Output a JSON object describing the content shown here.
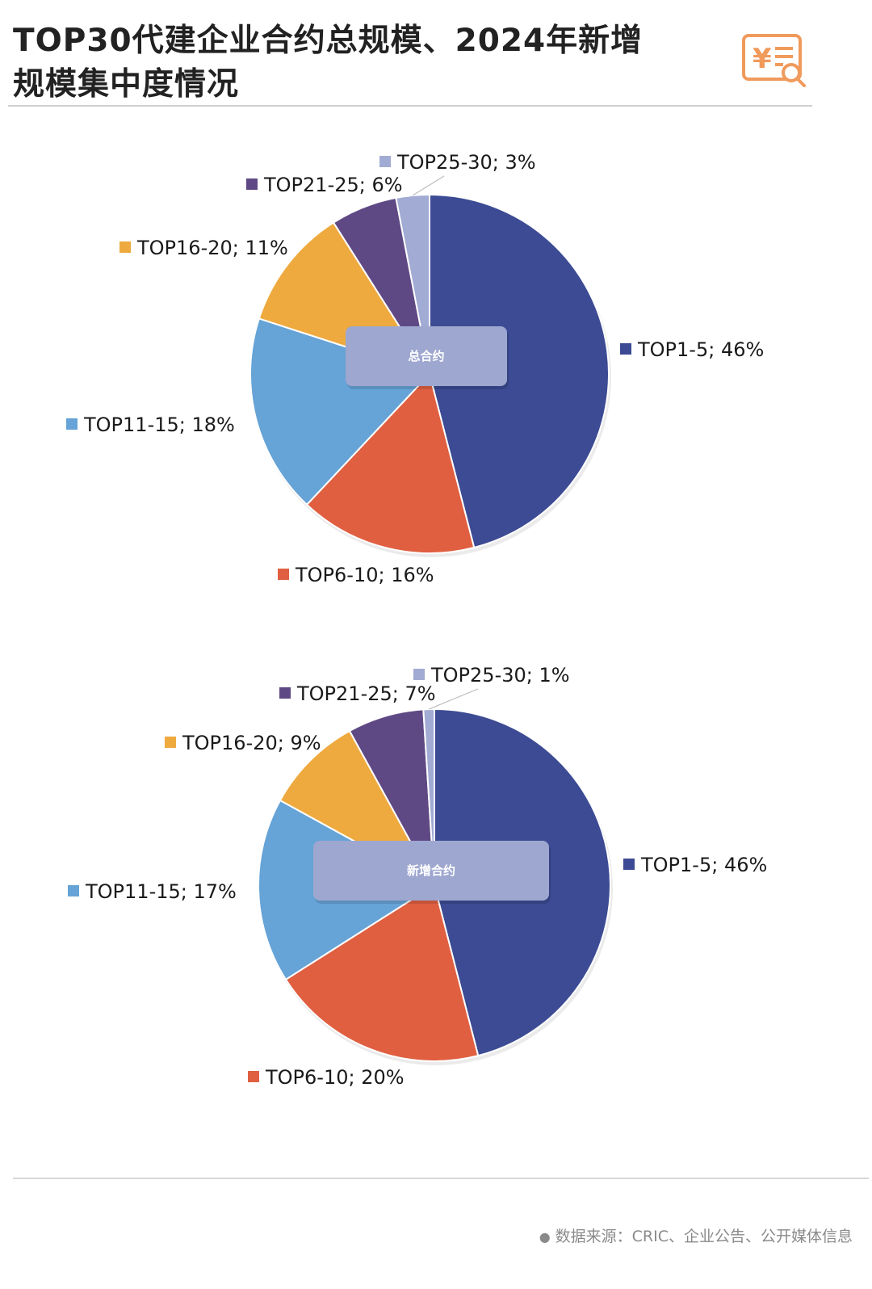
{
  "header": {
    "title_line1": "TOP30代建企业合约总规模、2024年新增",
    "title_line2": "规模集中度情况"
  },
  "footer": {
    "source": "数据来源：CRIC、企业公告、公开媒体信息"
  },
  "colors": {
    "TOP1-5": "#3c4b93",
    "TOP6-10": "#e05f41",
    "TOP11-15": "#66a3d6",
    "TOP16-20": "#eeaa3e",
    "TOP21-25": "#5f4985",
    "TOP25-30": "#a1abd3",
    "center_box": "#9ea7cf",
    "logo": "#f09a5c"
  },
  "chart_data": [
    {
      "type": "pie",
      "center_label": "总合约",
      "labels": [
        "TOP1-5",
        "TOP6-10",
        "TOP11-15",
        "TOP16-20",
        "TOP21-25",
        "TOP25-30"
      ],
      "values": [
        46,
        16,
        18,
        11,
        6,
        3
      ],
      "label_texts": [
        "TOP1-5; 46%",
        "TOP6-10; 16%",
        "TOP11-15; 18%",
        "TOP16-20; 11%",
        "TOP21-25; 6%",
        "TOP25-30; 3%"
      ]
    },
    {
      "type": "pie",
      "center_label": "新增合约",
      "labels": [
        "TOP1-5",
        "TOP6-10",
        "TOP11-15",
        "TOP16-20",
        "TOP21-25",
        "TOP25-30"
      ],
      "values": [
        46,
        20,
        17,
        9,
        7,
        1
      ],
      "label_texts": [
        "TOP1-5; 46%",
        "TOP6-10; 20%",
        "TOP11-15; 17%",
        "TOP16-20; 9%",
        "TOP21-25; 7%",
        "TOP25-30; 1%"
      ]
    }
  ]
}
